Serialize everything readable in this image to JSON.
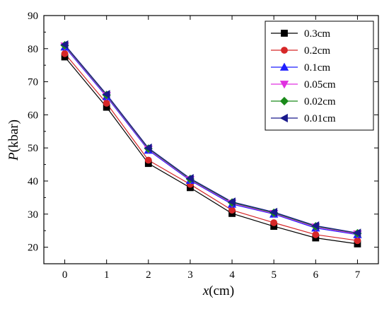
{
  "chart_data": {
    "type": "line",
    "xlabel_var": "x",
    "xlabel_unit": "(cm)",
    "ylabel_var": "P",
    "ylabel_unit": "(kbar)",
    "x": [
      0,
      1,
      2,
      3,
      4,
      5,
      6,
      7
    ],
    "xlim": [
      -0.5,
      7.5
    ],
    "ylim": [
      15,
      90
    ],
    "xticks": [
      0,
      1,
      2,
      3,
      4,
      5,
      6,
      7
    ],
    "yticks": [
      20,
      30,
      40,
      50,
      60,
      70,
      80,
      90
    ],
    "grid": false,
    "legend_position": "top-right",
    "series": [
      {
        "name": "0.3cm",
        "color": "#000000",
        "marker": "square",
        "values": [
          77.5,
          62.3,
          45.3,
          38.0,
          30.2,
          26.3,
          22.8,
          21.0
        ]
      },
      {
        "name": "0.2cm",
        "color": "#d62728",
        "marker": "circle",
        "values": [
          78.5,
          63.5,
          46.3,
          39.0,
          31.2,
          27.4,
          23.8,
          22.0
        ]
      },
      {
        "name": "0.1cm",
        "color": "#1f1fff",
        "marker": "triangle-up",
        "values": [
          80.5,
          65.5,
          49.3,
          40.2,
          33.0,
          30.0,
          25.8,
          23.8
        ]
      },
      {
        "name": "0.05cm",
        "color": "#e030e0",
        "marker": "triangle-down",
        "values": [
          80.8,
          65.8,
          49.6,
          40.4,
          33.3,
          30.2,
          26.1,
          24.0
        ]
      },
      {
        "name": "0.02cm",
        "color": "#1a8a1a",
        "marker": "diamond",
        "values": [
          81.0,
          66.0,
          49.8,
          40.6,
          33.5,
          30.4,
          26.3,
          24.2
        ]
      },
      {
        "name": "0.01cm",
        "color": "#1a1a8c",
        "marker": "triangle-left",
        "values": [
          81.2,
          66.2,
          50.0,
          40.8,
          33.7,
          30.6,
          26.5,
          24.3
        ]
      }
    ]
  }
}
